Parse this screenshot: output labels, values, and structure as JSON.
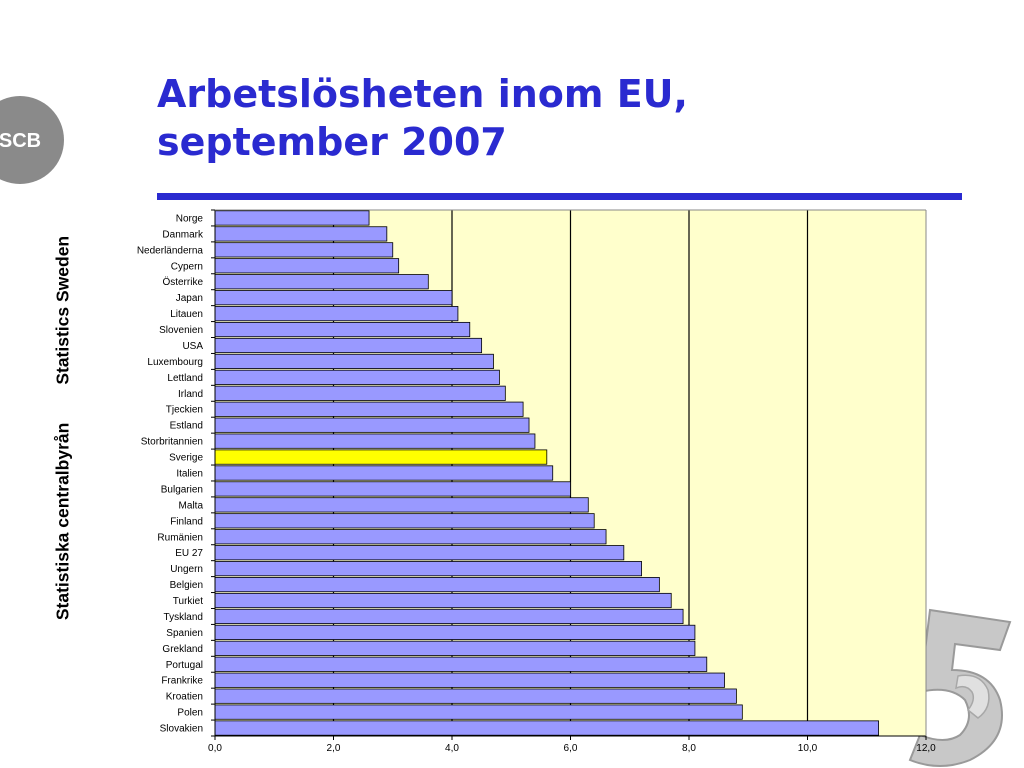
{
  "title": {
    "line1": "Arbetslösheten inom EU,",
    "line2": "september 2007"
  },
  "sidebar": {
    "line1": "Statistiska centralbyrån",
    "line2": "Statistics Sweden"
  },
  "logo": {
    "text": "SCB"
  },
  "chart_data": {
    "type": "bar",
    "orientation": "horizontal",
    "categories": [
      "Norge",
      "Danmark",
      "Nederländerna",
      "Cypern",
      "Österrike",
      "Japan",
      "Litauen",
      "Slovenien",
      "USA",
      "Luxembourg",
      "Lettland",
      "Irland",
      "Tjeckien",
      "Estland",
      "Storbritannien",
      "Sverige",
      "Italien",
      "Bulgarien",
      "Malta",
      "Finland",
      "Rumänien",
      "EU 27",
      "Ungern",
      "Belgien",
      "Turkiet",
      "Tyskland",
      "Spanien",
      "Grekland",
      "Portugal",
      "Frankrike",
      "Kroatien",
      "Polen",
      "Slovakien"
    ],
    "values": [
      2.6,
      2.9,
      3.0,
      3.1,
      3.6,
      4.0,
      4.1,
      4.3,
      4.5,
      4.7,
      4.8,
      4.9,
      5.2,
      5.3,
      5.4,
      5.6,
      5.7,
      6.0,
      6.3,
      6.4,
      6.6,
      6.9,
      7.2,
      7.5,
      7.7,
      7.9,
      8.1,
      8.1,
      8.3,
      8.6,
      8.8,
      8.9,
      11.2
    ],
    "highlight": "Sverige",
    "xlim": [
      0,
      12
    ],
    "xticks": [
      "0,0",
      "2,0",
      "4,0",
      "6,0",
      "8,0",
      "10,0",
      "12,0"
    ],
    "grid": true,
    "colors": {
      "bar": "#9999ff",
      "highlight": "#ffff00",
      "plot_bg": "#ffffcc",
      "bar_stroke": "#000000"
    }
  }
}
